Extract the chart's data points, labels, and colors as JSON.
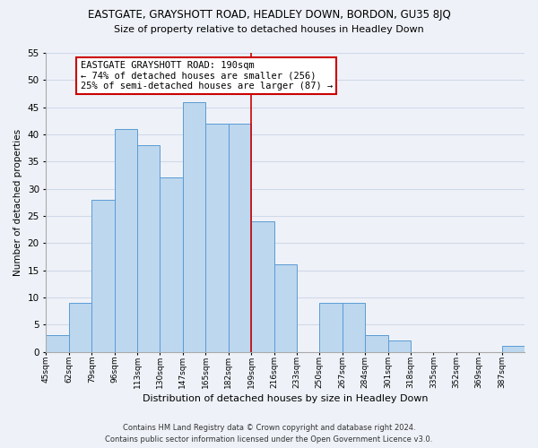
{
  "title": "EASTGATE, GRAYSHOTT ROAD, HEADLEY DOWN, BORDON, GU35 8JQ",
  "subtitle": "Size of property relative to detached houses in Headley Down",
  "xlabel": "Distribution of detached houses by size in Headley Down",
  "ylabel": "Number of detached properties",
  "bin_labels": [
    "45sqm",
    "62sqm",
    "79sqm",
    "96sqm",
    "113sqm",
    "130sqm",
    "147sqm",
    "165sqm",
    "182sqm",
    "199sqm",
    "216sqm",
    "233sqm",
    "250sqm",
    "267sqm",
    "284sqm",
    "301sqm",
    "318sqm",
    "335sqm",
    "352sqm",
    "369sqm",
    "387sqm"
  ],
  "bar_heights": [
    3,
    9,
    28,
    41,
    38,
    32,
    46,
    42,
    42,
    24,
    16,
    0,
    9,
    9,
    3,
    2,
    0,
    0,
    0,
    0,
    1
  ],
  "bar_color": "#bdd7ee",
  "bar_edge_color": "#5b9bd5",
  "grid_color": "#d0d8e8",
  "background_color": "#eef2f8",
  "vline_x": 9,
  "vline_color": "#cc0000",
  "annotation_title": "EASTGATE GRAYSHOTT ROAD: 190sqm",
  "annotation_line1": "← 74% of detached houses are smaller (256)",
  "annotation_line2": "25% of semi-detached houses are larger (87) →",
  "annotation_box_color": "#ffffff",
  "annotation_box_edge": "#cc0000",
  "footer_line1": "Contains HM Land Registry data © Crown copyright and database right 2024.",
  "footer_line2": "Contains public sector information licensed under the Open Government Licence v3.0.",
  "ylim": [
    0,
    55
  ],
  "yticks": [
    0,
    5,
    10,
    15,
    20,
    25,
    30,
    35,
    40,
    45,
    50,
    55
  ]
}
